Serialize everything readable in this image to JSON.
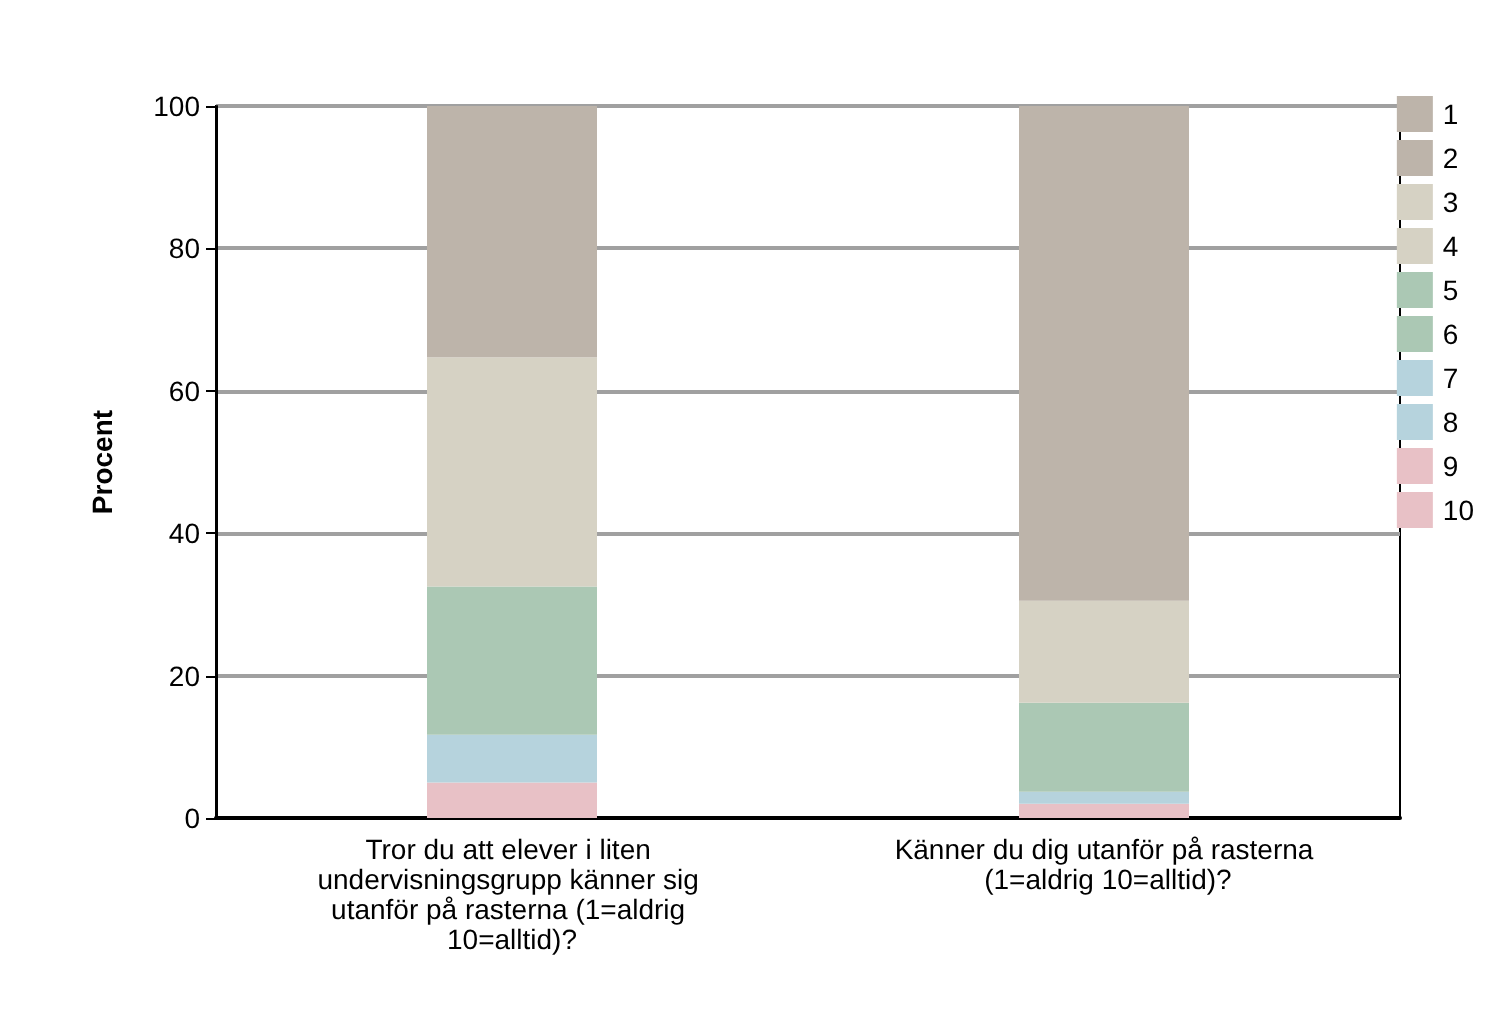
{
  "chart_data": {
    "type": "bar",
    "stacked": true,
    "ylabel": "Procent",
    "categories": [
      "Tror du att elever i liten undervisningsgrupp känner sig utanför på rasterna (1=aldrig 10=alltid)?",
      "Känner du dig utanför på rasterna (1=aldrig 10=alltid)?"
    ],
    "series": [
      {
        "name": "10",
        "color": "#e8c1c6",
        "values": [
          0,
          0
        ]
      },
      {
        "name": "9",
        "color": "#e8c1c6",
        "values": [
          5,
          2
        ]
      },
      {
        "name": "8",
        "color": "#b6d3dd",
        "values": [
          0,
          0
        ]
      },
      {
        "name": "7",
        "color": "#b6d3dd",
        "values": [
          6.7,
          1.7
        ]
      },
      {
        "name": "6",
        "color": "#abc8b4",
        "values": [
          0,
          0
        ]
      },
      {
        "name": "5",
        "color": "#abc8b4",
        "values": [
          20.8,
          12.5
        ]
      },
      {
        "name": "4",
        "color": "#d6d2c4",
        "values": [
          0,
          0
        ]
      },
      {
        "name": "3",
        "color": "#d6d2c4",
        "values": [
          32.2,
          14.3
        ]
      },
      {
        "name": "2",
        "color": "#bdb4aa",
        "values": [
          0,
          0
        ]
      },
      {
        "name": "1",
        "color": "#bdb4aa",
        "values": [
          35.3,
          69.5
        ]
      }
    ],
    "ylim": [
      0,
      100
    ],
    "yticks": [
      0,
      20,
      40,
      60,
      80,
      100
    ],
    "grid": "y",
    "legend": "right"
  }
}
